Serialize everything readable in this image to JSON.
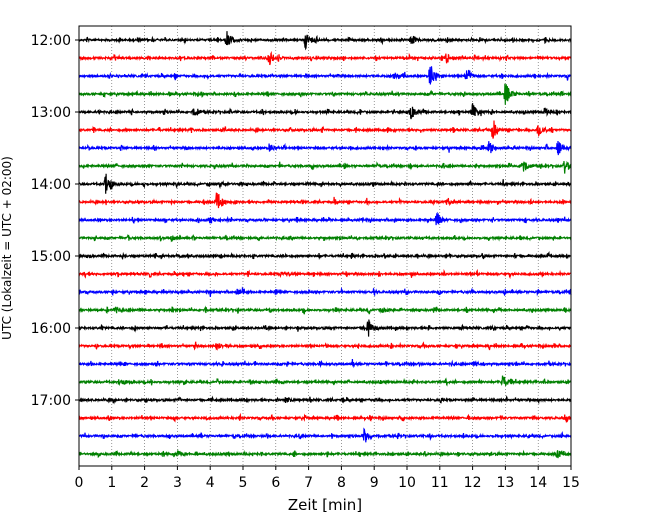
{
  "chart_data": {
    "type": "line",
    "title": "",
    "xlabel": "Zeit  [min]",
    "ylabel": "UTC (Lokalzeit = UTC + 02:00)",
    "xlim": [
      0,
      15
    ],
    "x_ticks": [
      "0",
      "1",
      "2",
      "3",
      "4",
      "5",
      "6",
      "7",
      "8",
      "9",
      "10",
      "11",
      "12",
      "13",
      "14",
      "15"
    ],
    "y_tick_labels": [
      "12:00",
      "13:00",
      "14:00",
      "15:00",
      "16:00",
      "17:00"
    ],
    "grid": "vertical dotted",
    "colors": [
      "#000000",
      "#ff0000",
      "#0000ff",
      "#008000"
    ],
    "series": [
      {
        "trace": "12:00",
        "color": "#000000",
        "events": [
          [
            1.8,
            0.2
          ],
          [
            4.5,
            1
          ],
          [
            6.9,
            1
          ],
          [
            10.1,
            0.4
          ]
        ]
      },
      {
        "trace": "12:15",
        "color": "#ff0000",
        "events": [
          [
            5.8,
            0.8
          ],
          [
            11.2,
            0.6
          ]
        ]
      },
      {
        "trace": "12:30",
        "color": "#0000ff",
        "events": [
          [
            9.6,
            0.5
          ],
          [
            10.7,
            1.6
          ],
          [
            11.8,
            0.8
          ]
        ]
      },
      {
        "trace": "12:45",
        "color": "#008000",
        "events": [
          [
            13.0,
            1.5
          ]
        ]
      },
      {
        "trace": "13:00",
        "color": "#000000",
        "events": [
          [
            3.5,
            0.4
          ],
          [
            10.1,
            1
          ],
          [
            12.0,
            0.9
          ],
          [
            14.2,
            0.5
          ]
        ]
      },
      {
        "trace": "13:15",
        "color": "#ff0000",
        "events": [
          [
            12.6,
            1.2
          ],
          [
            14.0,
            1
          ]
        ]
      },
      {
        "trace": "13:30",
        "color": "#0000ff",
        "events": [
          [
            5.8,
            0.5
          ],
          [
            12.5,
            0.8
          ],
          [
            14.6,
            0.8
          ]
        ]
      },
      {
        "trace": "13:45",
        "color": "#008000",
        "events": [
          [
            13.5,
            1
          ],
          [
            14.8,
            0.8
          ]
        ]
      },
      {
        "trace": "14:00",
        "color": "#000000",
        "events": [
          [
            0.8,
            1.5
          ],
          [
            4.3,
            0.3
          ]
        ]
      },
      {
        "trace": "14:15",
        "color": "#ff0000",
        "events": [
          [
            4.2,
            1.2
          ],
          [
            11.2,
            0.6
          ]
        ]
      },
      {
        "trace": "14:30",
        "color": "#0000ff",
        "events": [
          [
            4.0,
            0.4
          ],
          [
            10.9,
            0.8
          ]
        ]
      },
      {
        "trace": "14:45",
        "color": "#008000",
        "events": [
          [
            2.8,
            0.3
          ]
        ]
      },
      {
        "trace": "15:00",
        "color": "#000000",
        "events": [
          [
            3.0,
            0.2
          ]
        ]
      },
      {
        "trace": "15:15",
        "color": "#ff0000",
        "events": [
          [
            6.3,
            0.3
          ]
        ]
      },
      {
        "trace": "15:30",
        "color": "#0000ff",
        "events": [
          [
            4.8,
            0.3
          ]
        ]
      },
      {
        "trace": "15:45",
        "color": "#008000",
        "events": [
          [
            1.1,
            0.4
          ],
          [
            9.2,
            0.3
          ]
        ]
      },
      {
        "trace": "16:00",
        "color": "#000000",
        "events": [
          [
            8.8,
            1.2
          ]
        ]
      },
      {
        "trace": "16:15",
        "color": "#ff0000",
        "events": [
          [
            4.2,
            0.4
          ]
        ]
      },
      {
        "trace": "16:30",
        "color": "#0000ff",
        "events": [
          [
            12.0,
            0.3
          ]
        ]
      },
      {
        "trace": "16:45",
        "color": "#008000",
        "events": [
          [
            12.9,
            0.9
          ],
          [
            1.3,
            0.3
          ]
        ]
      },
      {
        "trace": "17:00",
        "color": "#000000",
        "events": [
          [
            6.3,
            0.3
          ]
        ]
      },
      {
        "trace": "17:15",
        "color": "#ff0000",
        "events": [
          [
            14.8,
            0.3
          ]
        ]
      },
      {
        "trace": "17:30",
        "color": "#0000ff",
        "events": [
          [
            8.7,
            0.8
          ]
        ]
      },
      {
        "trace": "17:45",
        "color": "#008000",
        "events": [
          [
            14.6,
            0.4
          ],
          [
            3.0,
            0.3
          ]
        ]
      }
    ]
  }
}
